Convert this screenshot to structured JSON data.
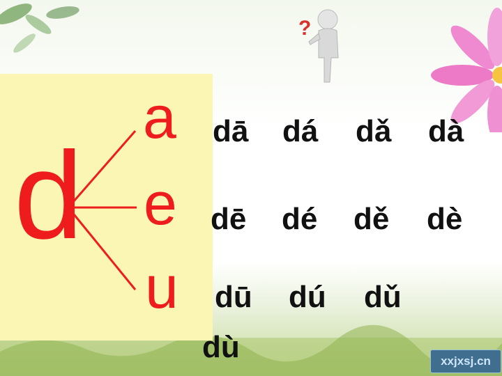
{
  "lesson": {
    "initial": "d",
    "vowels": [
      "a",
      "e",
      "u"
    ],
    "rows": [
      [
        "dā",
        "dá",
        "dǎ",
        "dà"
      ],
      [
        "dē",
        "dé",
        "dě",
        "dè"
      ],
      [
        "dū",
        "dú",
        "dǔ"
      ]
    ],
    "wrapped_syllable": "dù"
  },
  "decor": {
    "question_mark": "?",
    "watermark": "xxjxsj.cn"
  },
  "colors": {
    "accent": "#ee1c1c",
    "panel": "#fbf6b4",
    "text": "#111111"
  },
  "icons": [
    "leaves-icon",
    "thinking-person-icon",
    "pink-flower-icon",
    "grass-icon"
  ]
}
